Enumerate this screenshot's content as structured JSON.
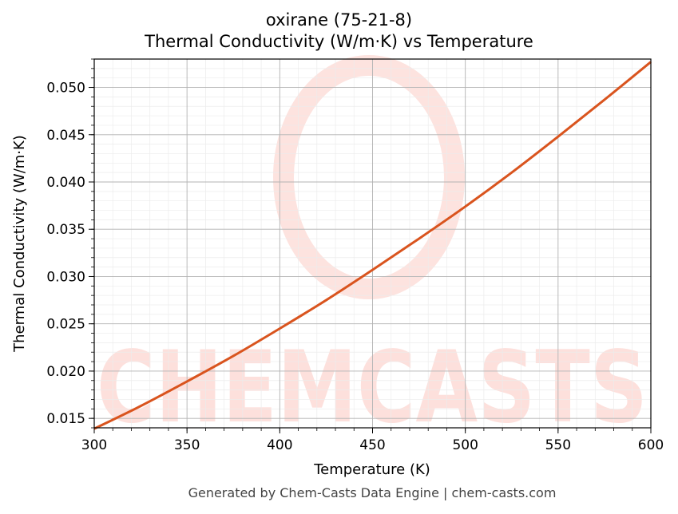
{
  "chart_data": {
    "type": "line",
    "title_line1": "oxirane (75-21-8)",
    "title_line2": "Thermal Conductivity (W/m·K) vs Temperature",
    "xlabel": "Temperature (K)",
    "ylabel": "Thermal Conductivity (W/m·K)",
    "xlim": [
      300,
      600
    ],
    "ylim": [
      0.014,
      0.053
    ],
    "x_ticks": [
      "300",
      "350",
      "400",
      "450",
      "500",
      "550",
      "600"
    ],
    "x_tick_values": [
      300,
      350,
      400,
      450,
      500,
      550,
      600
    ],
    "y_ticks": [
      "0.015",
      "0.020",
      "0.025",
      "0.030",
      "0.035",
      "0.040",
      "0.045",
      "0.050"
    ],
    "y_tick_values": [
      0.015,
      0.02,
      0.025,
      0.03,
      0.035,
      0.04,
      0.045,
      0.05
    ],
    "grid": true,
    "series": [
      {
        "color": "#d9541e",
        "x": [
          300,
          325,
          350,
          375,
          400,
          425,
          450,
          475,
          500,
          525,
          550,
          575,
          600
        ],
        "y": [
          0.0139,
          0.0163,
          0.0189,
          0.0216,
          0.0245,
          0.0275,
          0.0307,
          0.034,
          0.0374,
          0.041,
          0.0448,
          0.0487,
          0.0527
        ]
      }
    ]
  },
  "watermark": {
    "text": "CHEMCASTS",
    "color": "#fbd5cf"
  },
  "footer": "Generated by Chem-Casts Data Engine | chem-casts.com"
}
